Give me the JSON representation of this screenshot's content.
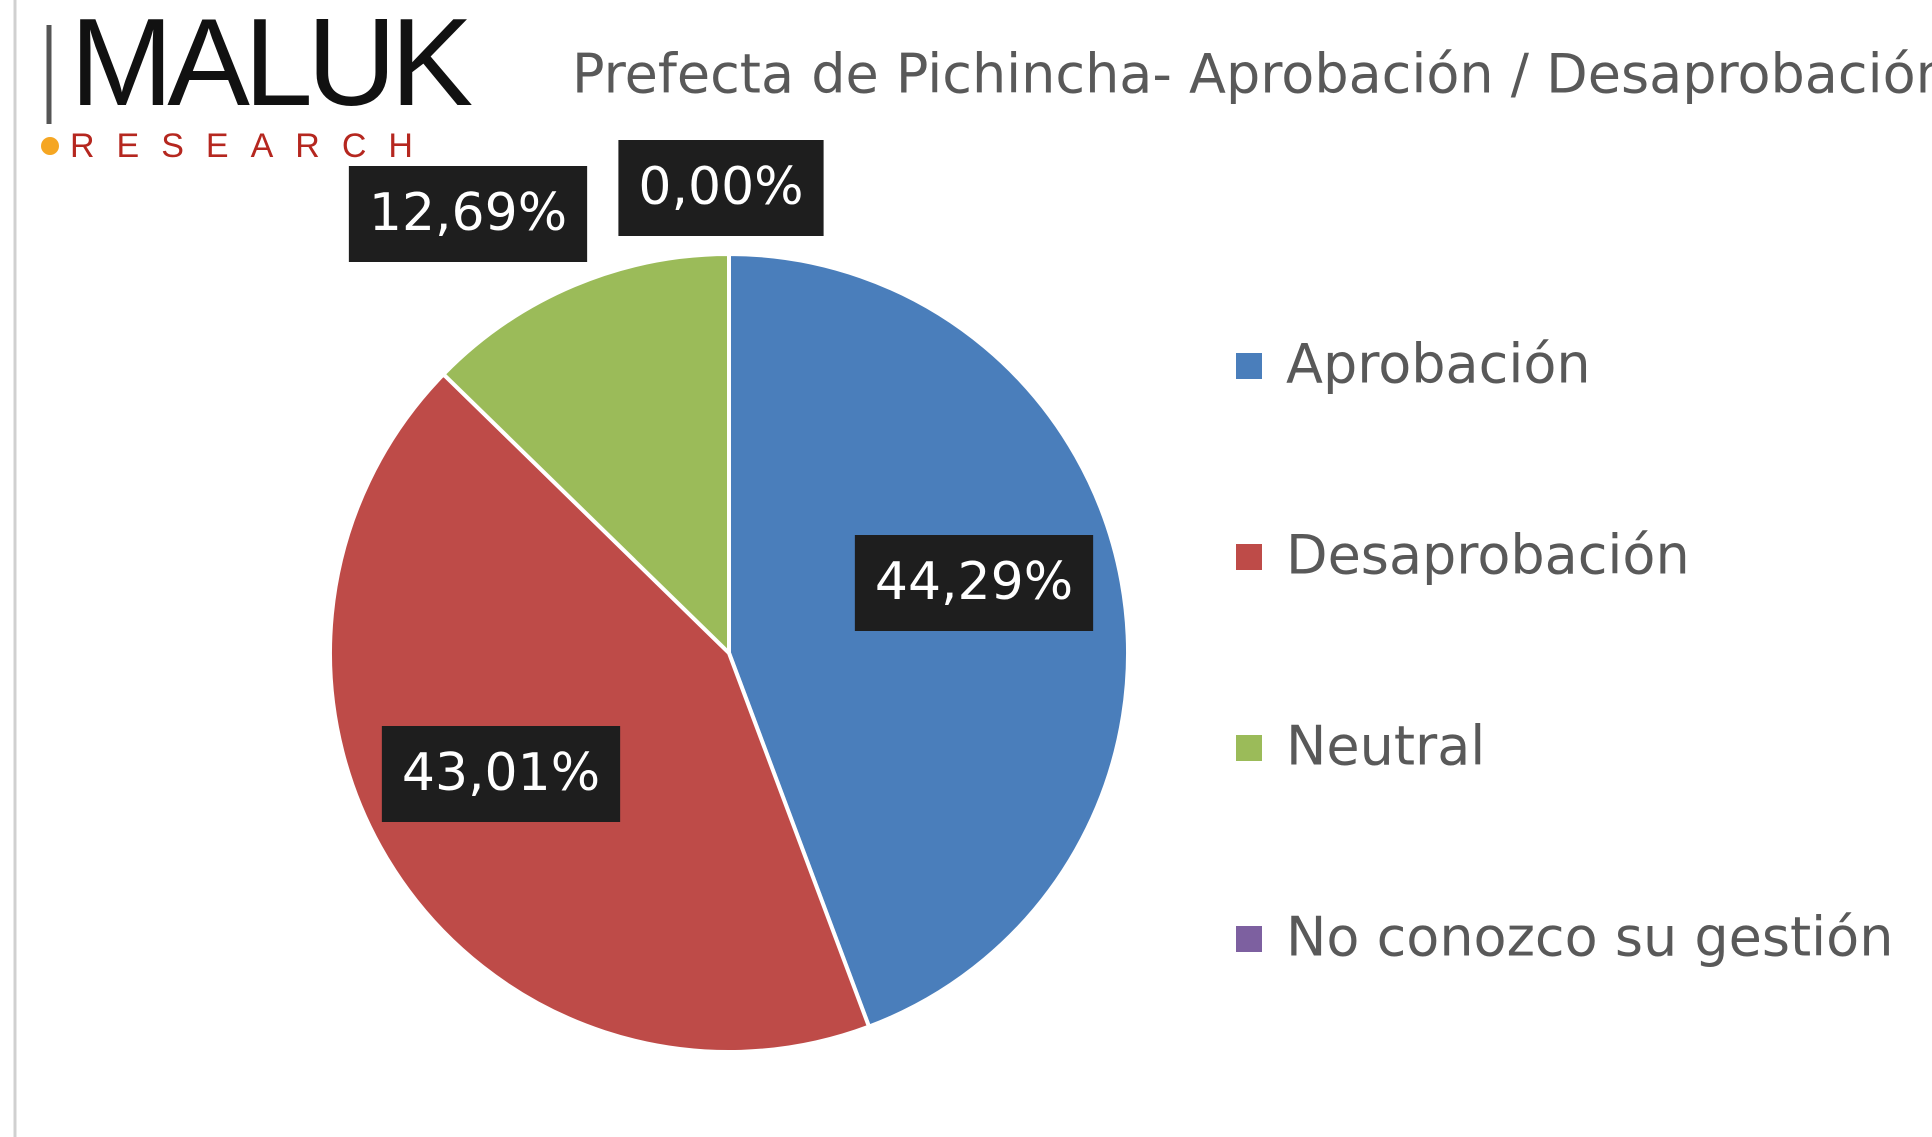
{
  "logo": {
    "name": "MALUK",
    "tagline": "RESEARCH"
  },
  "chart_data": {
    "type": "pie",
    "title": "Prefecta de Pichincha- Aprobación / Desaprobación",
    "categories": [
      "Aprobación",
      "Desaprobación",
      "Neutral",
      "No conozco su gestión"
    ],
    "values": [
      44.29,
      43.01,
      12.69,
      0.0
    ],
    "value_labels": [
      "44,29%",
      "43,01%",
      "12,69%",
      "0,00%"
    ],
    "colors": [
      "#4a7ebb",
      "#be4b48",
      "#9bbb59",
      "#7d60a0"
    ],
    "legend": "right"
  }
}
